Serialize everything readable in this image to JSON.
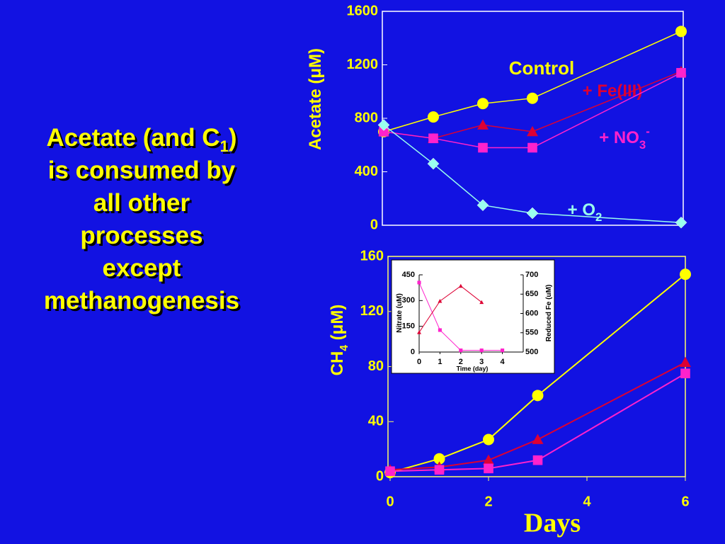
{
  "statement": {
    "before": "Acetate (and C",
    "sub": "1",
    "after": ")",
    "lines": [
      "is consumed by",
      "all other",
      "processes",
      "except",
      "methanogenesis"
    ]
  },
  "chart_data": [
    {
      "type": "line",
      "ylabel": "Acetate (μM)",
      "x": [
        0,
        1,
        2,
        3,
        6
      ],
      "xlim": [
        0,
        6
      ],
      "ylim": [
        0,
        1600
      ],
      "yticks": [
        0,
        400,
        800,
        1200,
        1600
      ],
      "series": [
        {
          "name": "Control",
          "color": "#ffff00",
          "marker": "circle",
          "values": [
            700,
            810,
            910,
            950,
            1450
          ]
        },
        {
          "name": "+ Fe(III)",
          "color": "#dd0033",
          "marker": "triangle",
          "values": [
            700,
            650,
            750,
            700,
            1150
          ]
        },
        {
          "name": "+ NO",
          "name_sub": "3",
          "name_sup": "-",
          "color": "#ff22cc",
          "marker": "square",
          "values": [
            700,
            650,
            580,
            580,
            1140
          ]
        },
        {
          "name": "+ O",
          "name_sub": "2",
          "color": "#99ffee",
          "marker": "diamond",
          "values": [
            750,
            460,
            150,
            90,
            20
          ]
        }
      ]
    },
    {
      "type": "line",
      "ylabel": "CH",
      "ylabel_sub": "4",
      "ylabel_after": " (μM)",
      "xlabel": "Days",
      "x": [
        0,
        1,
        2,
        3,
        6
      ],
      "xlim": [
        0,
        6
      ],
      "xticks": [
        0,
        2,
        4,
        6
      ],
      "ylim": [
        0,
        160
      ],
      "yticks": [
        0,
        40,
        80,
        120,
        160
      ],
      "series": [
        {
          "color": "#ffff00",
          "marker": "circle",
          "values": [
            3,
            13,
            27,
            59,
            147
          ]
        },
        {
          "color": "#dd0033",
          "marker": "triangle",
          "values": [
            5,
            7,
            12,
            27,
            83
          ]
        },
        {
          "color": "#ff22cc",
          "marker": "square",
          "values": [
            4,
            5,
            6,
            12,
            75
          ]
        }
      ]
    },
    {
      "type": "line",
      "ylabel": "Nitrate (uM)",
      "y2label": "Reduced Fe (uM)",
      "xlabel": "Time (day)",
      "x": [
        0,
        1,
        2,
        3,
        4
      ],
      "xlim": [
        0,
        5
      ],
      "xticks": [
        0,
        1,
        2,
        3,
        4
      ],
      "ylim": [
        0,
        450
      ],
      "yticks": [
        0,
        150,
        300,
        450
      ],
      "y2lim": [
        500,
        700
      ],
      "y2ticks": [
        500,
        550,
        600,
        650,
        700
      ],
      "series": [
        {
          "color": "#ff22cc",
          "marker": "square",
          "values": [
            405,
            128,
            10,
            10,
            10
          ]
        },
        {
          "color": "#dd0033",
          "marker": "triangle",
          "axis": "y2",
          "values": [
            551,
            632,
            671,
            629,
            null
          ]
        }
      ]
    }
  ]
}
